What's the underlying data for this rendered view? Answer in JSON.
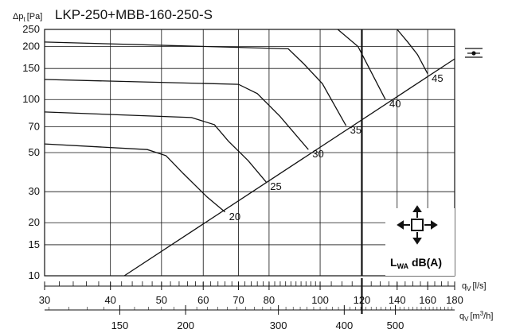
{
  "chart_data": {
    "type": "line",
    "title": "LKP-250+MBB-160-250-S",
    "ylabel": "Δp",
    "ylabel_sub": "t",
    "ylabel_unit": "[Pa]",
    "xlabel_ls": "q",
    "xlabel_ls_sub": "V",
    "xlabel_ls_unit": "[l/s]",
    "xlabel_m3h": "q",
    "xlabel_m3h_sub": "V",
    "xlabel_m3h_unit_pre": "[m",
    "xlabel_m3h_unit_sup": "3",
    "xlabel_m3h_unit_post": "/h]",
    "x_scale": "log",
    "y_scale": "log",
    "xlim": [
      30,
      180
    ],
    "ylim": [
      10,
      250
    ],
    "x_ticks": [
      30,
      40,
      50,
      60,
      70,
      80,
      100,
      120,
      140,
      160,
      180
    ],
    "x_tick_labels": [
      "30",
      "40",
      "50",
      "60",
      "70",
      "80",
      "100",
      "120",
      "140",
      "160",
      "180"
    ],
    "y_ticks": [
      10,
      15,
      20,
      30,
      50,
      70,
      100,
      150,
      200,
      250
    ],
    "y_tick_labels": [
      "10",
      "15",
      "20",
      "30",
      "50",
      "70",
      "100",
      "150",
      "200",
      "250"
    ],
    "m3h_ticks": [
      150,
      200,
      300,
      400,
      500
    ],
    "m3h_tick_labels": [
      "150",
      "200",
      "300",
      "400",
      "500"
    ],
    "grid": true,
    "highlight_x": 120,
    "sound_line": {
      "points": [
        [
          42.5,
          10
        ],
        [
          180,
          170
        ]
      ]
    },
    "series": [
      {
        "name": "20",
        "values": [
          [
            30,
            56
          ],
          [
            47,
            52
          ],
          [
            51,
            48
          ],
          [
            55,
            38
          ],
          [
            61,
            28
          ],
          [
            66,
            23
          ]
        ]
      },
      {
        "name": "25",
        "values": [
          [
            30,
            85
          ],
          [
            57,
            79
          ],
          [
            63,
            72
          ],
          [
            67,
            58
          ],
          [
            73,
            45
          ],
          [
            79,
            34
          ]
        ]
      },
      {
        "name": "30",
        "values": [
          [
            30,
            130
          ],
          [
            70,
            122
          ],
          [
            76,
            108
          ],
          [
            84,
            80
          ],
          [
            95,
            52
          ]
        ]
      },
      {
        "name": "35",
        "values": [
          [
            30,
            212
          ],
          [
            87,
            194
          ],
          [
            93,
            160
          ],
          [
            101,
            123
          ],
          [
            112,
            71
          ]
        ]
      },
      {
        "name": "40",
        "values": [
          [
            108,
            250
          ],
          [
            118,
            200
          ],
          [
            124,
            150
          ],
          [
            133,
            100
          ]
        ]
      },
      {
        "name": "45",
        "values": [
          [
            140,
            250
          ],
          [
            147,
            210
          ],
          [
            153,
            180
          ],
          [
            160,
            140
          ]
        ]
      }
    ],
    "legend_text": "L",
    "legend_sub": "WA",
    "legend_unit": " dB(A)"
  }
}
